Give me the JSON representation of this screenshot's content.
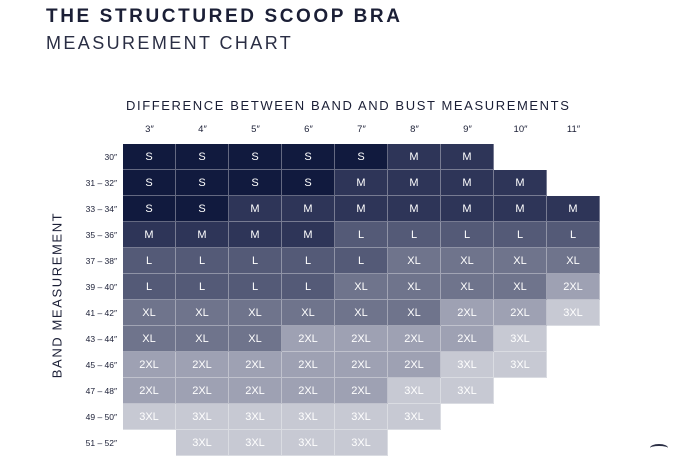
{
  "title": "THE STRUCTURED SCOOP BRA",
  "subtitle": "MEASUREMENT CHART",
  "column_axis_label": "DIFFERENCE BETWEEN BAND AND BUST MEASUREMENTS",
  "row_axis_label": "BAND MEASUREMENT",
  "columns": [
    "3″",
    "4″",
    "5″",
    "6″",
    "7″",
    "8″",
    "9″",
    "10″",
    "11″"
  ],
  "rows": [
    {
      "band": "30″",
      "sizes": [
        "S",
        "S",
        "S",
        "S",
        "S",
        "M",
        "M",
        "",
        ""
      ]
    },
    {
      "band": "31 – 32″",
      "sizes": [
        "S",
        "S",
        "S",
        "S",
        "M",
        "M",
        "M",
        "M",
        ""
      ]
    },
    {
      "band": "33 – 34″",
      "sizes": [
        "S",
        "S",
        "M",
        "M",
        "M",
        "M",
        "M",
        "M",
        "M"
      ]
    },
    {
      "band": "35 – 36″",
      "sizes": [
        "M",
        "M",
        "M",
        "M",
        "L",
        "L",
        "L",
        "L",
        "L"
      ]
    },
    {
      "band": "37 – 38″",
      "sizes": [
        "L",
        "L",
        "L",
        "L",
        "L",
        "XL",
        "XL",
        "XL",
        "XL"
      ]
    },
    {
      "band": "39 – 40″",
      "sizes": [
        "L",
        "L",
        "L",
        "L",
        "XL",
        "XL",
        "XL",
        "XL",
        "2XL"
      ]
    },
    {
      "band": "41 – 42″",
      "sizes": [
        "XL",
        "XL",
        "XL",
        "XL",
        "XL",
        "XL",
        "2XL",
        "2XL",
        "3XL"
      ]
    },
    {
      "band": "43 – 44″",
      "sizes": [
        "XL",
        "XL",
        "XL",
        "2XL",
        "2XL",
        "2XL",
        "2XL",
        "3XL",
        ""
      ]
    },
    {
      "band": "45 – 46″",
      "sizes": [
        "2XL",
        "2XL",
        "2XL",
        "2XL",
        "2XL",
        "2XL",
        "3XL",
        "3XL",
        ""
      ]
    },
    {
      "band": "47 – 48″",
      "sizes": [
        "2XL",
        "2XL",
        "2XL",
        "2XL",
        "2XL",
        "3XL",
        "3XL",
        "",
        ""
      ]
    },
    {
      "band": "49 – 50″",
      "sizes": [
        "3XL",
        "3XL",
        "3XL",
        "3XL",
        "3XL",
        "3XL",
        "",
        "",
        ""
      ]
    },
    {
      "band": "51 – 52″",
      "sizes": [
        "",
        "3XL",
        "3XL",
        "3XL",
        "3XL",
        "",
        "",
        "",
        ""
      ]
    }
  ],
  "size_colors": {
    "S": "#111a3e",
    "M": "#2e3558",
    "L": "#545a77",
    "XL": "#6f748c",
    "2XL": "#9ea1b3",
    "3XL": "#c7c9d3"
  }
}
